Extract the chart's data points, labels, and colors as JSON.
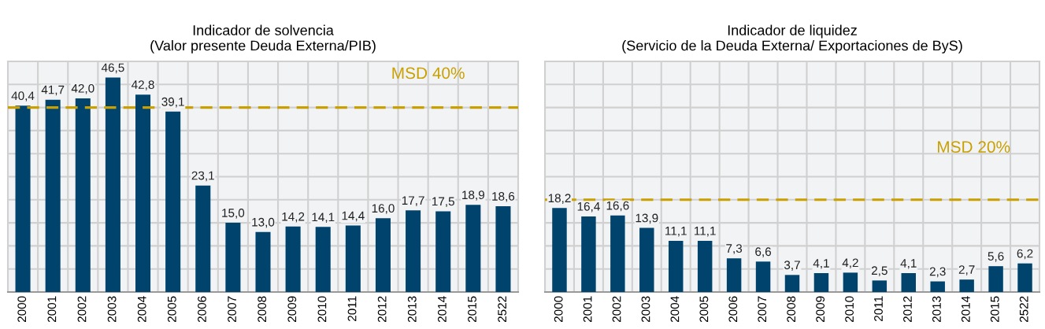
{
  "chart_data": [
    {
      "type": "bar",
      "title": "Indicador de solvencia\n(Valor presente Deuda Externa/PIB)",
      "categories": [
        "2000",
        "2001",
        "2002",
        "2003",
        "2004",
        "2005",
        "2006",
        "2007",
        "2008",
        "2009",
        "2010",
        "2011",
        "2012",
        "2013",
        "2014",
        "2015",
        "2522"
      ],
      "values": [
        40.4,
        41.7,
        42.0,
        46.5,
        42.8,
        39.1,
        23.1,
        15.0,
        13.0,
        14.2,
        14.1,
        14.4,
        16.0,
        17.7,
        17.5,
        18.9,
        18.6
      ],
      "value_labels": [
        "40,4",
        "41,7",
        "42,0",
        "46,5",
        "42,8",
        "39,1",
        "23,1",
        "15,0",
        "13,0",
        "14,2",
        "14,1",
        "14,4",
        "16,0",
        "17,7",
        "17,5",
        "18,9",
        "18,6"
      ],
      "color": "#00446e",
      "ylim": [
        0,
        50
      ],
      "yticks": [
        {
          "value": 0,
          "label": null
        },
        {
          "value": 5,
          "label": null
        },
        {
          "value": 10,
          "label": null
        },
        {
          "value": 15,
          "label": null
        },
        {
          "value": 20,
          "label": null
        },
        {
          "value": 25,
          "label": null
        },
        {
          "value": 30,
          "label": null
        },
        {
          "value": 35,
          "label": null
        },
        {
          "value": 40,
          "label": null
        },
        {
          "value": 45,
          "label": null
        },
        {
          "value": 50,
          "label": null
        }
      ],
      "tick_labels": "x",
      "grid": true,
      "ref_lines": [
        {
          "axis": "y",
          "value": 40,
          "label": "MSD 40%",
          "color": "#c9a000",
          "line_style": "dashed"
        }
      ]
    },
    {
      "type": "bar",
      "title": "Indicador de liquidez\n(Servicio de la Deuda Externa/ Exportaciones de ByS)",
      "categories": [
        "2000",
        "2001",
        "2002",
        "2003",
        "2004",
        "2005",
        "2006",
        "2007",
        "2008",
        "2009",
        "2010",
        "2011",
        "2012",
        "2013",
        "2014",
        "2015",
        "2522"
      ],
      "values": [
        18.2,
        16.4,
        16.6,
        13.9,
        11.1,
        11.1,
        7.3,
        6.6,
        3.7,
        4.1,
        4.2,
        2.5,
        4.1,
        2.3,
        2.7,
        5.6,
        6.2
      ],
      "value_labels": [
        "18,2",
        "16,4",
        "16,6",
        "13,9",
        "11,1",
        "11,1",
        "7,3",
        "6,6",
        "3,7",
        "4,1",
        "4,2",
        "2,5",
        "4,1",
        "2,3",
        "2,7",
        "5,6",
        "6,2"
      ],
      "color": "#00446e",
      "ylim": [
        0,
        50
      ],
      "yticks": [
        {
          "value": 0,
          "label": null
        },
        {
          "value": 5,
          "label": null
        },
        {
          "value": 10,
          "label": null
        },
        {
          "value": 15,
          "label": null
        },
        {
          "value": 20,
          "label": null
        },
        {
          "value": 25,
          "label": null
        },
        {
          "value": 30,
          "label": null
        },
        {
          "value": 35,
          "label": null
        },
        {
          "value": 40,
          "label": null
        },
        {
          "value": 45,
          "label": null
        },
        {
          "value": 50,
          "label": null
        }
      ],
      "tick_labels": "x",
      "grid": true,
      "ref_lines": [
        {
          "axis": "y",
          "value": 20,
          "label": "MSD 20%",
          "color": "#c9a000",
          "line_style": "dashed"
        }
      ]
    }
  ]
}
